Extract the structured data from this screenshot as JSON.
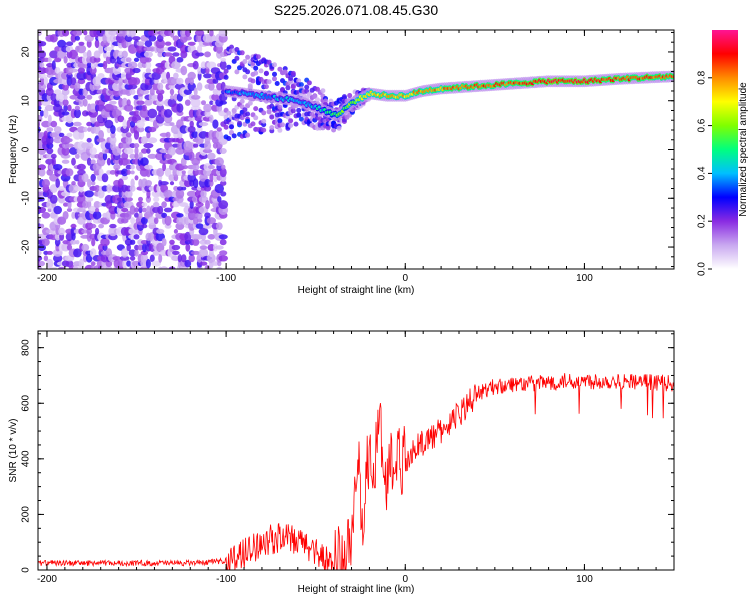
{
  "chart_data": [
    {
      "type": "heatmap",
      "title": "S225.2026.071.08.45.G30",
      "xlabel": "Height of straight line (km)",
      "ylabel": "Frequency (Hz)",
      "xlim": [
        -205,
        150
      ],
      "ylim": [
        -24.5,
        24.5
      ],
      "x_ticks": [
        -200,
        -100,
        0,
        100
      ],
      "y_ticks": [
        -20,
        -10,
        0,
        10,
        20
      ],
      "colorbar": {
        "label": "Normalized spectral amplitude",
        "range": [
          0,
          1
        ],
        "ticks": [
          0.0,
          0.2,
          0.4,
          0.6,
          0.8
        ],
        "colors": [
          "#ffffff",
          "#c9a8f0",
          "#8a2be2",
          "#0000ff",
          "#00bfff",
          "#00ff7f",
          "#7fff00",
          "#ffff00",
          "#ff8c00",
          "#ff0000",
          "#ff1493"
        ]
      },
      "ridge": {
        "x": [
          -100,
          -80,
          -60,
          -45,
          -38,
          -30,
          -20,
          -10,
          0,
          10,
          20,
          40,
          60,
          80,
          100,
          120,
          150
        ],
        "frequency": [
          12,
          11,
          10,
          8,
          7,
          9.5,
          11.5,
          11,
          11,
          12,
          12.5,
          13,
          13.5,
          14,
          14,
          14.5,
          15
        ],
        "amplitude": [
          0.35,
          0.35,
          0.4,
          0.45,
          0.55,
          0.6,
          0.7,
          0.75,
          0.75,
          0.8,
          0.8,
          0.85,
          0.85,
          0.9,
          0.9,
          0.85,
          0.85
        ]
      },
      "noise_region_x": [
        -205,
        -100
      ]
    },
    {
      "type": "line",
      "xlabel": "Height of straight line (km)",
      "ylabel": "SNR (10 * v/v)",
      "xlim": [
        -205,
        150
      ],
      "ylim": [
        0,
        860
      ],
      "x_ticks": [
        -200,
        -100,
        0,
        100
      ],
      "y_ticks": [
        0,
        200,
        400,
        600,
        800
      ],
      "color": "#ff0000",
      "x": [
        -205,
        -190,
        -175,
        -160,
        -140,
        -120,
        -105,
        -100,
        -95,
        -90,
        -85,
        -80,
        -75,
        -70,
        -65,
        -60,
        -55,
        -50,
        -45,
        -40,
        -35,
        -30,
        -28,
        -26,
        -24,
        -22,
        -20,
        -18,
        -16,
        -14,
        -12,
        -10,
        -8,
        -6,
        -4,
        -2,
        0,
        5,
        10,
        15,
        20,
        25,
        30,
        35,
        40,
        45,
        50,
        60,
        70,
        80,
        90,
        100,
        110,
        120,
        130,
        140,
        150
      ],
      "y": [
        25,
        25,
        25,
        25,
        25,
        25,
        30,
        35,
        45,
        60,
        80,
        100,
        110,
        115,
        110,
        100,
        90,
        70,
        40,
        30,
        40,
        80,
        250,
        350,
        200,
        300,
        450,
        250,
        500,
        600,
        250,
        350,
        400,
        380,
        420,
        400,
        400,
        430,
        460,
        480,
        500,
        530,
        560,
        600,
        630,
        650,
        660,
        670,
        670,
        675,
        680,
        680,
        680,
        680,
        680,
        675,
        670
      ]
    }
  ]
}
